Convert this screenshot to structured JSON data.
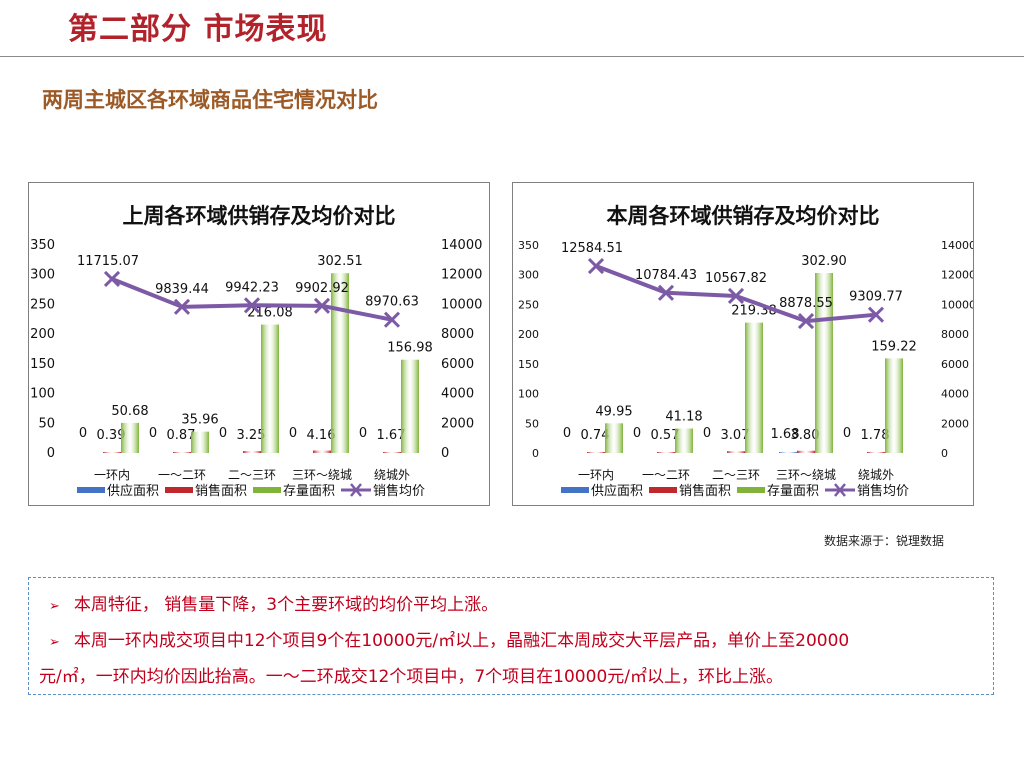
{
  "header": {
    "title": "第二部分 市场表现",
    "subtitle": "两周主城区各环域商品住宅情况对比"
  },
  "chart_data": [
    {
      "type": "bar",
      "title": "上周各环域供销存及均价对比",
      "categories": [
        "一环内",
        "一～二环",
        "二～三环",
        "三环～绕城",
        "绕城外"
      ],
      "ylim": [
        0,
        350
      ],
      "y_ticks": [
        "0",
        "50",
        "100",
        "150",
        "200",
        "250",
        "300",
        "350"
      ],
      "y2lim": [
        0,
        14000
      ],
      "y2_ticks": [
        "0",
        "2000",
        "4000",
        "6000",
        "8000",
        "10000",
        "12000",
        "14000"
      ],
      "series": [
        {
          "name": "供应面积",
          "kind": "bar",
          "axis": "left",
          "color": "#4472c4",
          "values": [
            0,
            0,
            0,
            0,
            0
          ],
          "labels": [
            "0",
            "0",
            "0",
            "0",
            "0"
          ]
        },
        {
          "name": "销售面积",
          "kind": "bar",
          "axis": "left",
          "color": "#c0282e",
          "values": [
            0.39,
            0.87,
            3.25,
            4.16,
            1.67
          ],
          "labels": [
            "0.39",
            "0.87",
            "3.25",
            "4.16",
            "1.67"
          ]
        },
        {
          "name": "存量面积",
          "kind": "bar",
          "axis": "left",
          "color": "#7fb33a",
          "values": [
            50.68,
            35.96,
            216.08,
            302.51,
            156.98
          ],
          "labels": [
            "50.68",
            "35.96",
            "216.08",
            "302.51",
            "156.98"
          ]
        },
        {
          "name": "销售均价",
          "kind": "line",
          "axis": "right",
          "color": "#7d5aa6",
          "values": [
            11715.07,
            9839.44,
            9942.23,
            9902.92,
            8970.63
          ],
          "labels": [
            "11715.07",
            "9839.44",
            "9942.23",
            "9902.92",
            "8970.63"
          ]
        }
      ],
      "legend": "bottom"
    },
    {
      "type": "bar",
      "title": "本周各环域供销存及均价对比",
      "categories": [
        "一环内",
        "一～二环",
        "二～三环",
        "三环～绕城",
        "绕城外"
      ],
      "ylim": [
        0,
        350
      ],
      "y_ticks": [
        "0",
        "50",
        "100",
        "150",
        "200",
        "250",
        "300",
        "350"
      ],
      "y2lim": [
        0,
        14000
      ],
      "y2_ticks": [
        "0",
        "2000",
        "4000",
        "6000",
        "8000",
        "10000",
        "12000",
        "14000"
      ],
      "series": [
        {
          "name": "供应面积",
          "kind": "bar",
          "axis": "left",
          "color": "#4472c4",
          "values": [
            0,
            0,
            0,
            1.68,
            0
          ],
          "labels": [
            "0",
            "0",
            "0",
            "1.68",
            "0"
          ]
        },
        {
          "name": "销售面积",
          "kind": "bar",
          "axis": "left",
          "color": "#c0282e",
          "values": [
            0.74,
            0.57,
            3.07,
            3.8,
            1.78
          ],
          "labels": [
            "0.74",
            "0.57",
            "3.07",
            "3.80",
            "1.78"
          ]
        },
        {
          "name": "存量面积",
          "kind": "bar",
          "axis": "left",
          "color": "#7fb33a",
          "values": [
            49.95,
            41.18,
            219.38,
            302.9,
            159.22
          ],
          "labels": [
            "49.95",
            "41.18",
            "219.38",
            "302.90",
            "159.22"
          ]
        },
        {
          "name": "销售均价",
          "kind": "line",
          "axis": "right",
          "color": "#7d5aa6",
          "values": [
            12584.51,
            10784.43,
            10567.82,
            8878.55,
            9309.77
          ],
          "labels": [
            "12584.51",
            "10784.43",
            "10567.82",
            "8878.55",
            "9309.77"
          ]
        }
      ],
      "legend": "bottom"
    }
  ],
  "source": "数据来源于：锐理数据",
  "notes": [
    "本周特征， 销售量下降，3个主要环域的均价平均上涨。",
    "本周一环内成交项目中12个项目9个在10000元/㎡以上，晶融汇本周成交大平层产品，单价上至20000",
    "元/㎡，一环内均价因此抬高。一～二环成交12个项目中，7个项目在10000元/㎡以上，环比上涨。"
  ],
  "note_bullet": "➢"
}
